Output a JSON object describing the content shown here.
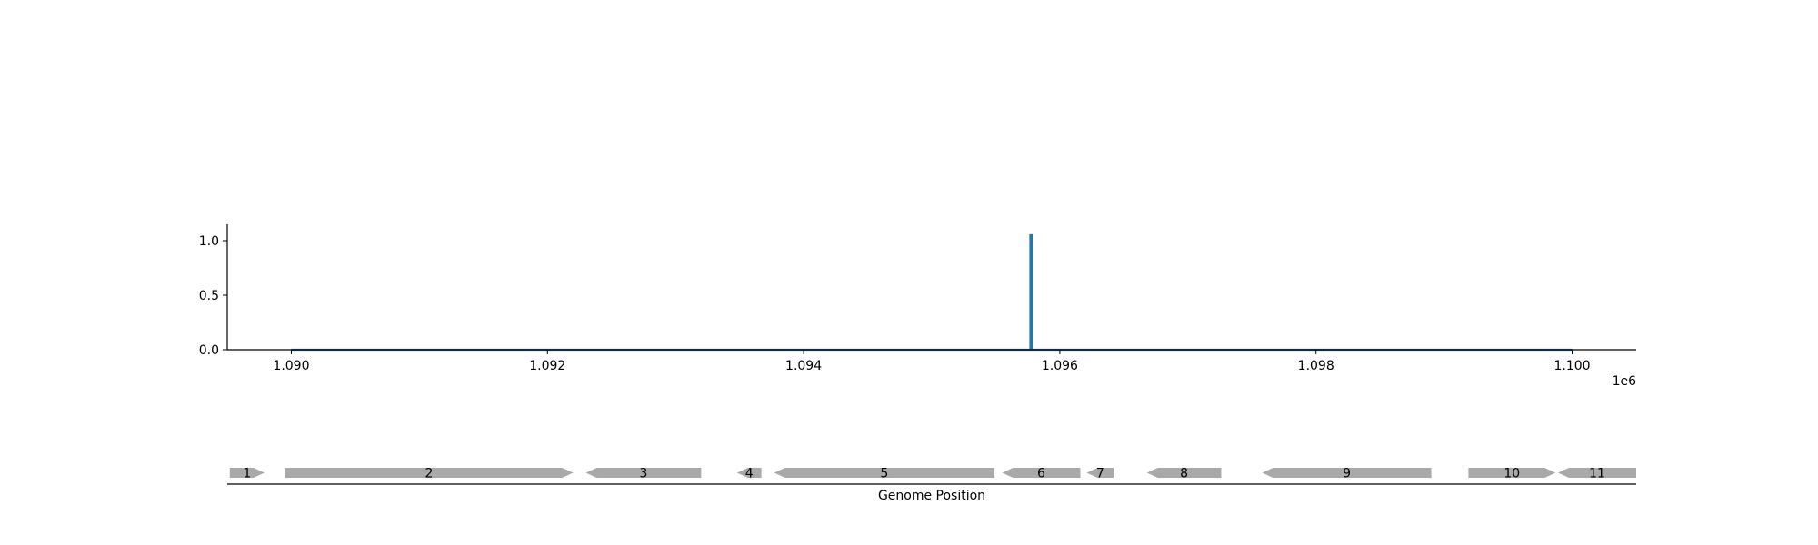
{
  "chart_data": {
    "type": "line",
    "xlabel": "Genome Position",
    "x_offset_label": "1e6",
    "xlim": [
      1089500,
      1100500
    ],
    "ylim": [
      0,
      1.15
    ],
    "x_ticks": [
      1090000,
      1092000,
      1094000,
      1096000,
      1098000,
      1100000
    ],
    "x_tick_labels": [
      "1.090",
      "1.092",
      "1.094",
      "1.096",
      "1.098",
      "1.100"
    ],
    "y_ticks": [
      0.0,
      0.5,
      1.0
    ],
    "y_tick_labels": [
      "0.0",
      "0.5",
      "1.0"
    ],
    "grid": false,
    "series": [
      {
        "color": "#1f77b4",
        "points": [
          [
            1090000,
            0
          ],
          [
            1095770,
            0
          ],
          [
            1095770,
            1.05
          ],
          [
            1095780,
            1.05
          ],
          [
            1095780,
            0
          ],
          [
            1100000,
            0
          ]
        ]
      }
    ],
    "genes": [
      {
        "label": "1",
        "start": 1089520,
        "end": 1089790,
        "strand": "+"
      },
      {
        "label": "2",
        "start": 1089950,
        "end": 1092200,
        "strand": "+"
      },
      {
        "label": "3",
        "start": 1092300,
        "end": 1093200,
        "strand": "-"
      },
      {
        "label": "4",
        "start": 1093480,
        "end": 1093670,
        "strand": "-"
      },
      {
        "label": "5",
        "start": 1093770,
        "end": 1095490,
        "strand": "-"
      },
      {
        "label": "6",
        "start": 1095550,
        "end": 1096160,
        "strand": "-"
      },
      {
        "label": "7",
        "start": 1096210,
        "end": 1096420,
        "strand": "-"
      },
      {
        "label": "8",
        "start": 1096680,
        "end": 1097260,
        "strand": "-"
      },
      {
        "label": "9",
        "start": 1097580,
        "end": 1098900,
        "strand": "-"
      },
      {
        "label": "10",
        "start": 1099190,
        "end": 1099870,
        "strand": "+"
      },
      {
        "label": "11",
        "start": 1099890,
        "end": 1100500,
        "strand": "-"
      }
    ],
    "colors": {
      "line": "#1f77b4",
      "gene": "#a9a9a9",
      "axis": "#000000"
    }
  }
}
